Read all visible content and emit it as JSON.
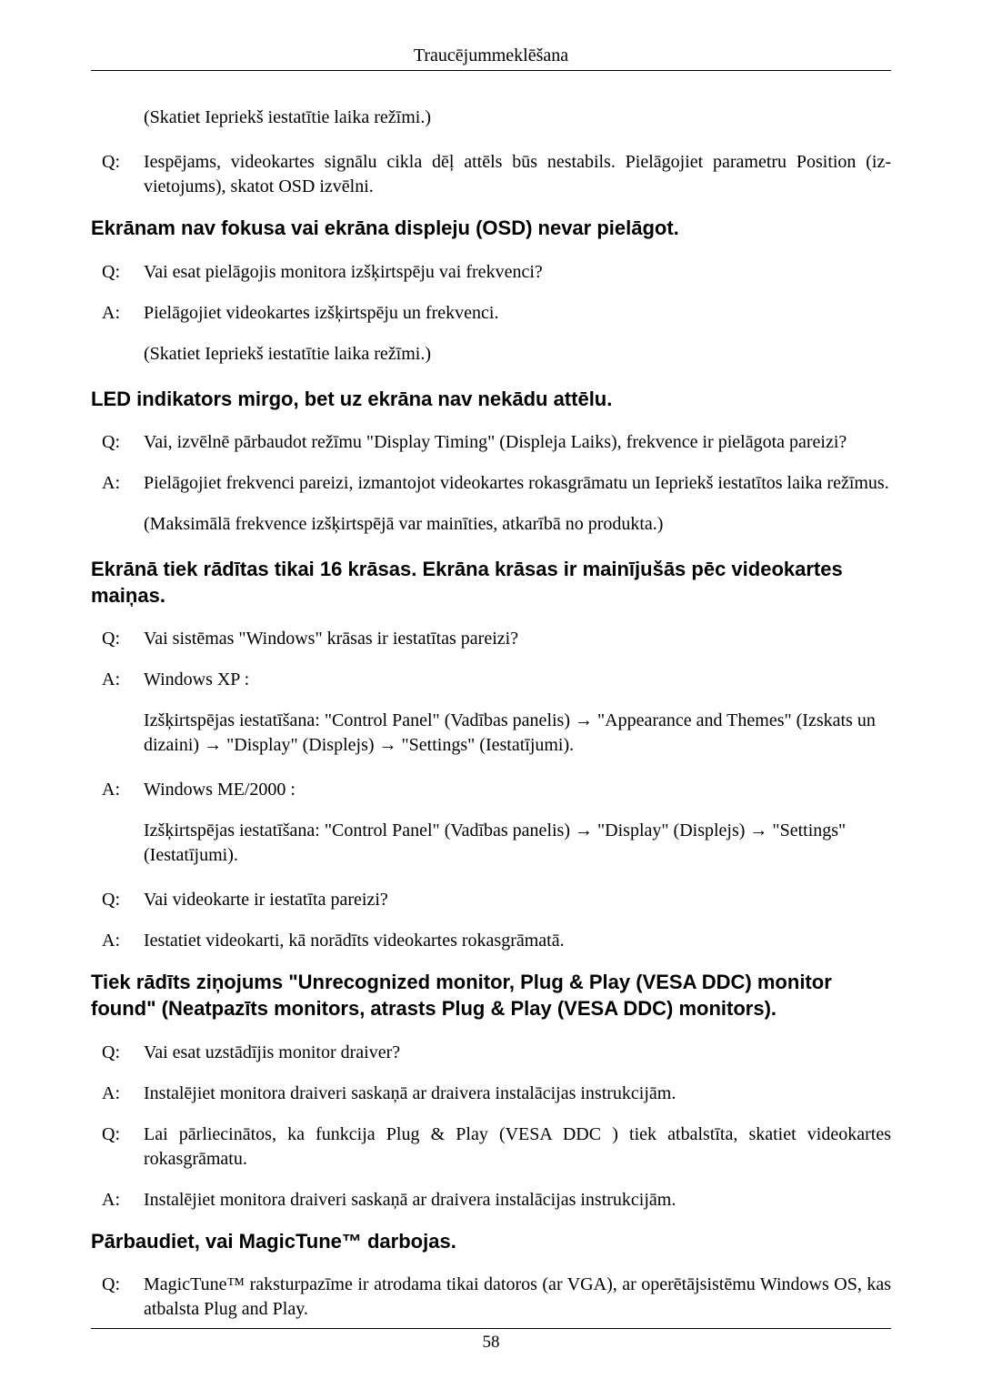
{
  "header": {
    "title": "Traucējummeklēšana"
  },
  "footer": {
    "page": "58"
  },
  "items": [
    {
      "kind": "note",
      "text": "(Skatiet Iepriekš iestatītie laika režīmi.)"
    },
    {
      "kind": "qa",
      "label": "Q:",
      "text": "Iespējams, videokartes signālu cikla dēļ attēls būs nestabils. Pielāgojiet parametru Position (iz­vietojums), skatot OSD izvēlni."
    },
    {
      "kind": "heading",
      "text": "Ekrānam nav fokusa vai ekrāna displeju (OSD) nevar pielāgot."
    },
    {
      "kind": "qa",
      "label": "Q:",
      "text": "Vai esat pielāgojis monitora izšķirtspēju vai frekvenci?"
    },
    {
      "kind": "qa",
      "label": "A:",
      "text": "Pielāgojiet videokartes izšķirtspēju un frekvenci."
    },
    {
      "kind": "note",
      "text": "(Skatiet Iepriekš iestatītie laika režīmi.)"
    },
    {
      "kind": "heading",
      "text": "LED indikators mirgo, bet uz ekrāna nav nekādu attēlu."
    },
    {
      "kind": "qa",
      "label": "Q:",
      "text": "Vai, izvēlnē pārbaudot režīmu \"Display Timing\" (Displeja Laiks), frekvence ir pielāgota pareizi?"
    },
    {
      "kind": "qa",
      "label": "A:",
      "text": "Pielāgojiet frekvenci pareizi, izmantojot videokartes rokasgrāmatu un Iepriekš iestatītos laika režīmus."
    },
    {
      "kind": "note",
      "text": "(Maksimālā frekvence izšķirtspējā var mainīties, atkarībā no produkta.)"
    },
    {
      "kind": "heading",
      "text": "Ekrānā tiek rādītas tikai 16 krāsas. Ekrāna krāsas ir mainījušās pēc vid­eokartes maiņas."
    },
    {
      "kind": "qa",
      "label": "Q:",
      "text": "Vai sistēmas \"Windows\" krāsas ir iestatītas pareizi?"
    },
    {
      "kind": "qa",
      "label": "A:",
      "text": "Windows XP :"
    },
    {
      "kind": "note",
      "text": "Izšķirtspējas iestatīšana: \"Control Panel\" (Vadības panelis) → \"Appearance and Themes\" (Iz­skats un dizaini) → \"Display\" (Displejs) → \"Settings\" (Iestatījumi)."
    },
    {
      "kind": "qa",
      "label": "A:",
      "text": "Windows ME/2000 :"
    },
    {
      "kind": "note",
      "text": "Izšķirtspējas iestatīšana: \"Control Panel\" (Vadības panelis) → \"Display\" (Displejs) → \"Set­tings\" (Iestatījumi)."
    },
    {
      "kind": "qa",
      "label": "Q:",
      "text": "Vai videokarte ir iestatīta pareizi?"
    },
    {
      "kind": "qa",
      "label": "A:",
      "text": "Iestatiet videokarti, kā norādīts videokartes rokasgrāmatā."
    },
    {
      "kind": "heading",
      "text": "Tiek rādīts ziņojums \"Unrecognized monitor, Plug & Play (VESA DDC) monitor found\" (Neatpazīts monitors, atrasts Plug & Play (VESA DDC) monitors)."
    },
    {
      "kind": "qa",
      "label": "Q:",
      "text": "Vai esat uzstādījis monitor draiver?"
    },
    {
      "kind": "qa",
      "label": "A:",
      "text": "Instalējiet monitora draiveri saskaņā ar draivera instalācijas instrukcijām."
    },
    {
      "kind": "qa",
      "label": "Q:",
      "text": "Lai pārliecinātos, ka funkcija Plug & Play (VESA DDC ) tiek atbalstīta, skatiet videokartes rokasgrāmatu."
    },
    {
      "kind": "qa",
      "label": "A:",
      "text": "Instalējiet monitora draiveri saskaņā ar draivera instalācijas instrukcijām."
    },
    {
      "kind": "heading",
      "text": "Pārbaudiet, vai MagicTune™ darbojas."
    },
    {
      "kind": "qa",
      "label": "Q:",
      "text": "MagicTune™ raksturpazīme ir atrodama tikai datoros (ar VGA), ar operētājsistēmu Windows OS, kas atbalsta Plug and Play."
    }
  ]
}
